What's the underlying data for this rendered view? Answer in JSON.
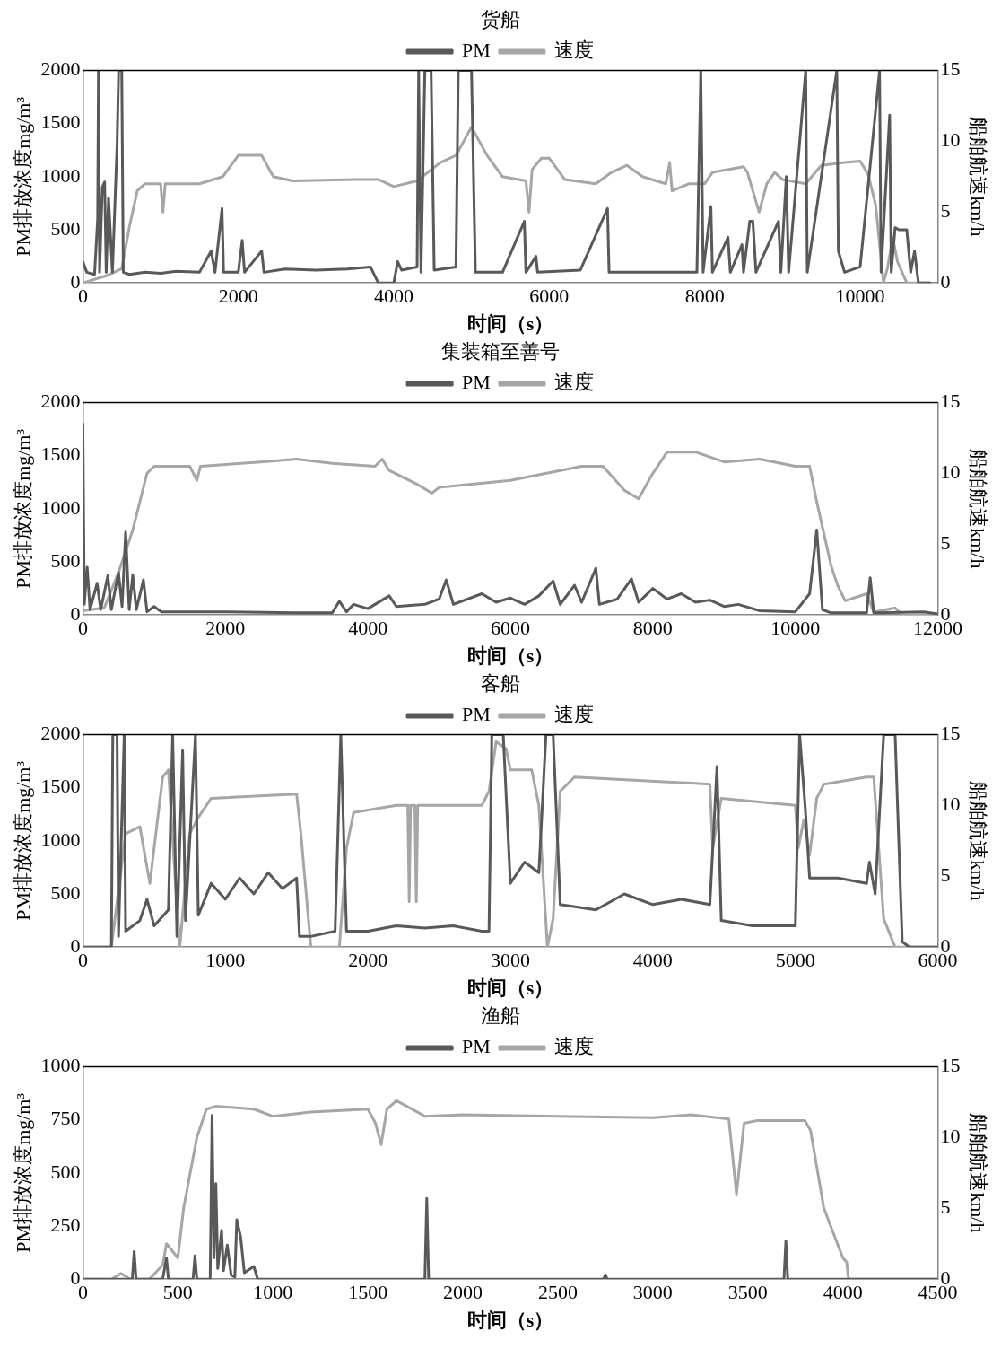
{
  "chart_data": [
    {
      "type": "line",
      "title": "货船",
      "xlabel": "时间（s）",
      "ylabel": "PM排放浓度mg/m³",
      "y2label": "船舶航速km/h",
      "xlim": [
        0,
        11000
      ],
      "xticks": [
        0,
        2000,
        4000,
        6000,
        8000,
        10000
      ],
      "ylim": [
        0,
        2000
      ],
      "yticks": [
        0,
        500,
        1000,
        1500,
        2000
      ],
      "y2lim": [
        0,
        15
      ],
      "y2ticks": [
        0,
        5,
        10,
        15
      ],
      "grid": false,
      "legend": "top",
      "marker": "none",
      "line_style": "solid",
      "series": [
        {
          "name": "PM",
          "color": "#595959",
          "x": [
            0,
            50,
            150,
            190,
            200,
            215,
            250,
            280,
            300,
            330,
            380,
            440,
            460,
            500,
            520,
            600,
            800,
            1000,
            1200,
            1500,
            1650,
            1700,
            1790,
            1810,
            2000,
            2050,
            2080,
            2300,
            2330,
            2600,
            3000,
            3400,
            3700,
            3800,
            4000,
            4050,
            4100,
            4300,
            4320,
            4350,
            4400,
            4480,
            4520,
            4800,
            4830,
            4950,
            5000,
            5050,
            5400,
            5680,
            5700,
            5830,
            5850,
            6400,
            6750,
            6770,
            7200,
            7550,
            7900,
            7950,
            7980,
            8080,
            8100,
            8300,
            8330,
            8480,
            8500,
            8580,
            8620,
            8660,
            8950,
            8980,
            9050,
            9080,
            9300,
            9320,
            9700,
            9720,
            9800,
            10000,
            10250,
            10270,
            10380,
            10400,
            10450,
            10500,
            10600,
            10650,
            10700,
            10750,
            10900
          ],
          "values": [
            200,
            100,
            80,
            600,
            2000,
            100,
            900,
            950,
            100,
            800,
            100,
            1300,
            2000,
            2000,
            100,
            80,
            100,
            90,
            110,
            100,
            300,
            100,
            700,
            100,
            100,
            400,
            100,
            300,
            100,
            130,
            120,
            130,
            150,
            0,
            0,
            200,
            120,
            150,
            2000,
            100,
            2000,
            2000,
            120,
            150,
            2000,
            2000,
            2000,
            100,
            100,
            580,
            100,
            250,
            100,
            120,
            700,
            100,
            100,
            100,
            100,
            2000,
            100,
            720,
            100,
            430,
            100,
            360,
            100,
            580,
            580,
            100,
            580,
            100,
            1000,
            100,
            2000,
            100,
            2000,
            300,
            100,
            150,
            2000,
            100,
            1580,
            100,
            520,
            500,
            500,
            100,
            300,
            0,
            0
          ]
        },
        {
          "name": "速度",
          "color": "#a6a6a6",
          "axis": "y2",
          "x": [
            0,
            300,
            500,
            600,
            700,
            800,
            1000,
            1030,
            1060,
            1500,
            1800,
            2000,
            2300,
            2450,
            2700,
            3500,
            3800,
            4000,
            4300,
            4600,
            4800,
            5000,
            5200,
            5400,
            5700,
            5740,
            5780,
            5900,
            6000,
            6200,
            6600,
            6800,
            7000,
            7200,
            7500,
            7550,
            7580,
            7800,
            8000,
            8100,
            8500,
            8550,
            8700,
            8800,
            8900,
            9000,
            9300,
            9500,
            9800,
            10000,
            10100,
            10200,
            10300,
            10350,
            10420,
            10480,
            10600,
            10900
          ],
          "values": [
            0,
            0.5,
            1,
            4,
            6.5,
            7,
            7,
            5,
            7,
            7,
            7.5,
            9,
            9,
            7.5,
            7.2,
            7.3,
            7.3,
            6.8,
            7.2,
            8.5,
            9,
            11,
            9,
            7.5,
            7.2,
            5,
            8,
            8.8,
            8.8,
            7.3,
            7,
            7.8,
            8.3,
            7.5,
            7,
            8.5,
            6.5,
            7,
            7,
            7.8,
            8.2,
            7.8,
            5,
            7,
            7.8,
            7.3,
            7,
            8.3,
            8.5,
            8.6,
            7.7,
            5.5,
            0,
            1,
            3.2,
            1.5,
            0,
            0
          ]
        }
      ]
    },
    {
      "type": "line",
      "title": "集装箱至善号",
      "xlabel": "时间（s）",
      "ylabel": "PM排放浓度mg/m³",
      "y2label": "船舶航速km/h",
      "xlim": [
        0,
        12000
      ],
      "xticks": [
        0,
        2000,
        4000,
        6000,
        8000,
        10000,
        12000
      ],
      "ylim": [
        0,
        2000
      ],
      "yticks": [
        0,
        500,
        1000,
        1500,
        2000
      ],
      "y2lim": [
        0,
        15
      ],
      "y2ticks": [
        0,
        5,
        10,
        15
      ],
      "grid": false,
      "legend": "top",
      "marker": "none",
      "line_style": "solid",
      "series": [
        {
          "name": "PM",
          "color": "#595959",
          "x": [
            0,
            20,
            60,
            100,
            200,
            250,
            350,
            400,
            500,
            550,
            600,
            650,
            700,
            750,
            850,
            900,
            1000,
            1100,
            2000,
            3000,
            3500,
            3600,
            3700,
            3800,
            4000,
            4300,
            4400,
            4800,
            5000,
            5100,
            5200,
            5600,
            5800,
            6000,
            6200,
            6400,
            6600,
            6700,
            6900,
            7000,
            7200,
            7250,
            7500,
            7700,
            7800,
            8000,
            8200,
            8400,
            8600,
            8800,
            9000,
            9200,
            9500,
            10000,
            10200,
            10300,
            10380,
            10500,
            11000,
            11050,
            11100,
            11800,
            12000
          ],
          "values": [
            1800,
            100,
            450,
            50,
            300,
            50,
            370,
            50,
            400,
            80,
            780,
            50,
            380,
            50,
            330,
            30,
            80,
            30,
            30,
            20,
            20,
            130,
            30,
            100,
            60,
            180,
            80,
            100,
            150,
            330,
            100,
            200,
            120,
            160,
            100,
            180,
            320,
            100,
            280,
            120,
            440,
            100,
            150,
            340,
            120,
            250,
            150,
            200,
            120,
            140,
            80,
            100,
            40,
            30,
            200,
            800,
            50,
            20,
            20,
            350,
            20,
            30,
            10
          ]
        },
        {
          "name": "速度",
          "color": "#a6a6a6",
          "axis": "y2",
          "x": [
            0,
            300,
            500,
            700,
            900,
            1000,
            1500,
            1600,
            1650,
            2500,
            3000,
            3500,
            4100,
            4200,
            4300,
            4700,
            4900,
            5000,
            6000,
            7000,
            7300,
            7600,
            7800,
            8000,
            8200,
            8600,
            9000,
            9500,
            10000,
            10200,
            10300,
            10500,
            10600,
            10700,
            11000,
            11100,
            11400,
            11500,
            12000
          ],
          "values": [
            0.3,
            0.5,
            3,
            6,
            10,
            10.5,
            10.5,
            9.5,
            10.5,
            10.8,
            11,
            10.7,
            10.5,
            11,
            10.2,
            9.2,
            8.6,
            9,
            9.5,
            10.5,
            10.5,
            8.8,
            8.2,
            10,
            11.5,
            11.5,
            10.8,
            11,
            10.5,
            10.5,
            8,
            3.5,
            2,
            1,
            1.5,
            0.2,
            0.5,
            0,
            0
          ]
        }
      ]
    },
    {
      "type": "line",
      "title": "客船",
      "xlabel": "时间（s）",
      "ylabel": "PM排放浓度mg/m³",
      "y2label": "船舶航速km/h",
      "xlim": [
        0,
        6000
      ],
      "xticks": [
        0,
        1000,
        2000,
        3000,
        4000,
        5000,
        6000
      ],
      "ylim": [
        0,
        2000
      ],
      "yticks": [
        0,
        500,
        1000,
        1500,
        2000
      ],
      "y2lim": [
        0,
        15
      ],
      "y2ticks": [
        0,
        5,
        10,
        15
      ],
      "grid": false,
      "legend": "top",
      "marker": "none",
      "line_style": "solid",
      "series": [
        {
          "name": "PM",
          "color": "#595959",
          "x": [
            0,
            200,
            210,
            240,
            250,
            290,
            300,
            400,
            450,
            500,
            600,
            630,
            660,
            700,
            720,
            790,
            810,
            900,
            1000,
            1100,
            1200,
            1300,
            1400,
            1500,
            1520,
            1600,
            1770,
            1810,
            1850,
            2000,
            2200,
            2400,
            2600,
            2800,
            2850,
            2870,
            2950,
            3000,
            3100,
            3200,
            3250,
            3300,
            3350,
            3600,
            3800,
            4000,
            4200,
            4400,
            4450,
            4480,
            4700,
            5000,
            5030,
            5070,
            5100,
            5300,
            5500,
            5520,
            5560,
            5620,
            5700,
            5750,
            5800,
            6000
          ],
          "values": [
            0,
            0,
            2000,
            2000,
            100,
            2000,
            150,
            250,
            450,
            200,
            350,
            2000,
            100,
            1850,
            250,
            2000,
            300,
            600,
            450,
            650,
            500,
            700,
            550,
            650,
            100,
            100,
            150,
            2000,
            150,
            150,
            200,
            180,
            200,
            150,
            150,
            2000,
            2000,
            600,
            800,
            700,
            2000,
            2000,
            400,
            350,
            500,
            400,
            450,
            400,
            1700,
            250,
            200,
            200,
            2000,
            1300,
            650,
            650,
            600,
            800,
            500,
            2000,
            2000,
            50,
            0,
            0
          ]
        },
        {
          "name": "速度",
          "color": "#a6a6a6",
          "axis": "y2",
          "x": [
            0,
            200,
            300,
            400,
            470,
            500,
            560,
            600,
            640,
            680,
            750,
            800,
            900,
            1500,
            1530,
            1600,
            1800,
            1850,
            1900,
            2200,
            2280,
            2290,
            2300,
            2330,
            2340,
            2350,
            2800,
            2850,
            2900,
            2970,
            3000,
            3150,
            3200,
            3260,
            3300,
            3350,
            3450,
            4400,
            4420,
            4480,
            5000,
            5020,
            5060,
            5100,
            5150,
            5200,
            5500,
            5550,
            5620,
            5700,
            6000
          ],
          "values": [
            0,
            0,
            8,
            8.5,
            4.5,
            7,
            12,
            12.5,
            6,
            0,
            8,
            9,
            10.5,
            10.8,
            8,
            0,
            0,
            7,
            9.5,
            10,
            10,
            3.2,
            10,
            10,
            3.2,
            10,
            10,
            11,
            14.5,
            14,
            12.5,
            12.5,
            10,
            0,
            2,
            11,
            12,
            11.5,
            7,
            10.5,
            10,
            7,
            9,
            6.5,
            10.5,
            11.5,
            12,
            12,
            2,
            0,
            0
          ]
        }
      ]
    },
    {
      "type": "line",
      "title": "渔船",
      "xlabel": "时间（s）",
      "ylabel": "PM排放浓度mg/m³",
      "y2label": "船舶航速km/h",
      "xlim": [
        0,
        4500
      ],
      "xticks": [
        0,
        500,
        1000,
        1500,
        2000,
        2500,
        3000,
        3500,
        4000,
        4500
      ],
      "ylim": [
        0,
        1000
      ],
      "yticks": [
        0,
        250,
        500,
        750,
        1000
      ],
      "y2lim": [
        0,
        15
      ],
      "y2ticks": [
        0,
        5,
        10,
        15
      ],
      "grid": false,
      "legend": "top",
      "marker": "none",
      "line_style": "solid",
      "series": [
        {
          "name": "PM",
          "color": "#595959",
          "x": [
            0,
            260,
            270,
            280,
            420,
            440,
            450,
            580,
            590,
            600,
            670,
            680,
            690,
            700,
            710,
            730,
            740,
            760,
            780,
            800,
            810,
            830,
            850,
            900,
            920,
            1800,
            1810,
            1820,
            2740,
            2750,
            2760,
            3690,
            3700,
            3710,
            4300,
            4500
          ],
          "values": [
            0,
            0,
            130,
            0,
            0,
            100,
            0,
            0,
            110,
            0,
            0,
            770,
            100,
            450,
            50,
            230,
            40,
            160,
            20,
            10,
            280,
            200,
            30,
            60,
            0,
            0,
            380,
            0,
            0,
            20,
            0,
            0,
            180,
            0,
            0,
            0
          ]
        },
        {
          "name": "速度",
          "color": "#a6a6a6",
          "axis": "y2",
          "x": [
            0,
            150,
            200,
            250,
            350,
            420,
            440,
            500,
            530,
            600,
            650,
            700,
            900,
            1000,
            1200,
            1500,
            1540,
            1570,
            1600,
            1650,
            1800,
            2000,
            2500,
            3000,
            3200,
            3400,
            3440,
            3480,
            3550,
            3800,
            3830,
            3900,
            4000,
            4020,
            4030,
            4500
          ],
          "values": [
            0,
            0,
            0.4,
            0,
            0,
            1,
            2.5,
            1.5,
            5,
            10,
            12,
            12.2,
            12,
            11.5,
            11.8,
            12,
            11,
            9.5,
            12,
            12.6,
            11.5,
            11.6,
            11.5,
            11.4,
            11.6,
            11.3,
            6,
            11,
            11.2,
            11.2,
            10.5,
            5,
            1.5,
            1.2,
            0,
            0
          ]
        }
      ]
    }
  ]
}
